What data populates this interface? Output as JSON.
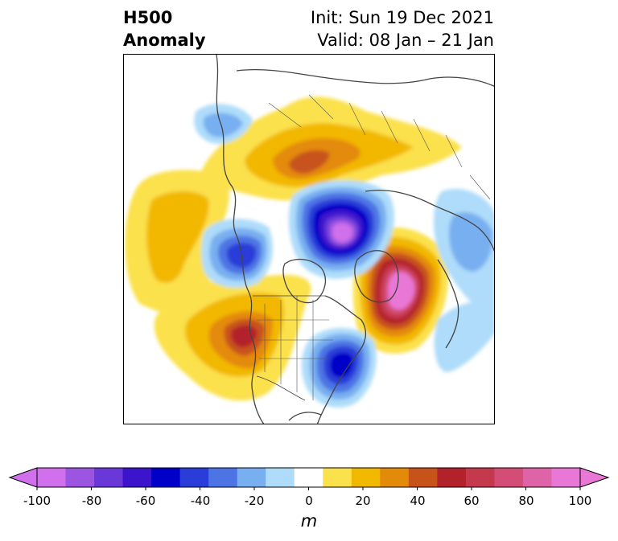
{
  "title": {
    "left_line1": "H500",
    "left_line2": "Anomaly",
    "right_line1": "Init: Sun 19 Dec 2021",
    "right_line2": "Valid: 08 Jan – 21 Jan"
  },
  "map": {
    "projection": "north-polar-stereographic",
    "features": [
      "coastlines",
      "country-borders",
      "us-state-borders"
    ]
  },
  "colorbar": {
    "unit": "m",
    "extend": "both",
    "levels": [
      -100,
      -90,
      -80,
      -70,
      -60,
      -50,
      -40,
      -30,
      -20,
      -10,
      10,
      20,
      30,
      40,
      50,
      60,
      70,
      80,
      90,
      100
    ],
    "colors": [
      "#d070ec",
      "#9c55e0",
      "#6a37d9",
      "#3c14cc",
      "#0000c8",
      "#2a3dd8",
      "#4d74e4",
      "#78aff0",
      "#aedcfa",
      "#ffffff",
      "#fbe14b",
      "#f2b800",
      "#e48a09",
      "#c8531a",
      "#b3212a",
      "#c4394b",
      "#d34d76",
      "#df64a7",
      "#e977d6"
    ],
    "extend_low_color": "#d070ec",
    "extend_high_color": "#e977d6",
    "tick_labels": [
      "-100",
      "-80",
      "-60",
      "-40",
      "-20",
      "0",
      "20",
      "40",
      "60",
      "80",
      "100"
    ],
    "tick_values": [
      -100,
      -80,
      -60,
      -40,
      -20,
      0,
      20,
      40,
      60,
      80,
      100
    ]
  }
}
